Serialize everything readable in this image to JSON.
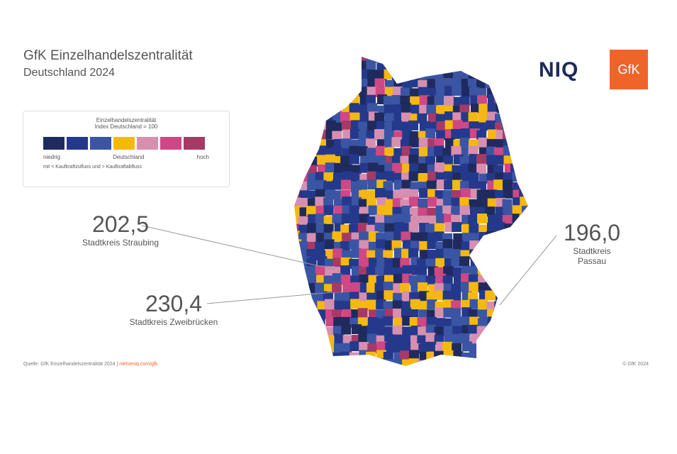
{
  "header": {
    "title": "GfK Einzelhandelszentralität",
    "subtitle": "Deutschland 2024"
  },
  "logos": [
    "NIQ",
    "GfK"
  ],
  "legend": {
    "title": "Einzelhandelszentralität",
    "subtitle": "Index Deutschland = 100",
    "colors": [
      "#1f2b5e",
      "#24398c",
      "#3a55a3",
      "#f6b80f",
      "#d78fb0",
      "#cf4784",
      "#a63a66"
    ],
    "labels": [
      "niedrig",
      "Deutschland",
      "hoch"
    ],
    "note": "mit < Kaufkraftzufluss und > Kaufkraftabfluss"
  },
  "callouts": [
    {
      "value": "202,5",
      "label": "Stadtkreis Straubing"
    },
    {
      "value": "230,4",
      "label": "Stadtkreis Zweibrücken"
    },
    {
      "value": "196,0",
      "label": "Stadtkreis Passau"
    }
  ],
  "footer": {
    "source": "Quelle: GfK Einzelhandelszentralität 2024 |",
    "link": "nielseniq.com/gfk",
    "copyright": "© GfK 2024"
  }
}
